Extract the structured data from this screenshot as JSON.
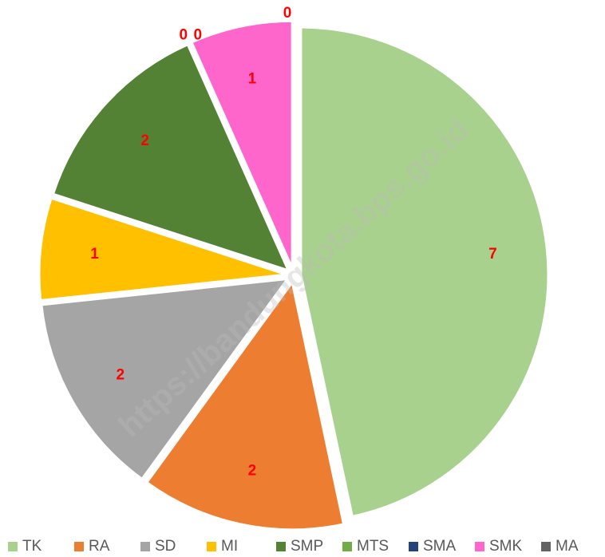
{
  "chart_data": {
    "type": "pie",
    "watermark": "https://bandungkota.bps.go.id",
    "categories": [
      "TK",
      "RA",
      "SD",
      "MI",
      "SMP",
      "MTS",
      "SMA",
      "SMK",
      "MA"
    ],
    "values": [
      7,
      2,
      2,
      1,
      2,
      0,
      0,
      1,
      0
    ],
    "colors": [
      "#a9d18e",
      "#ed7d31",
      "#a5a5a5",
      "#ffc000",
      "#548235",
      "#70ad47",
      "#264478",
      "#ff66cc",
      "#636363"
    ],
    "legend": "bottom"
  }
}
